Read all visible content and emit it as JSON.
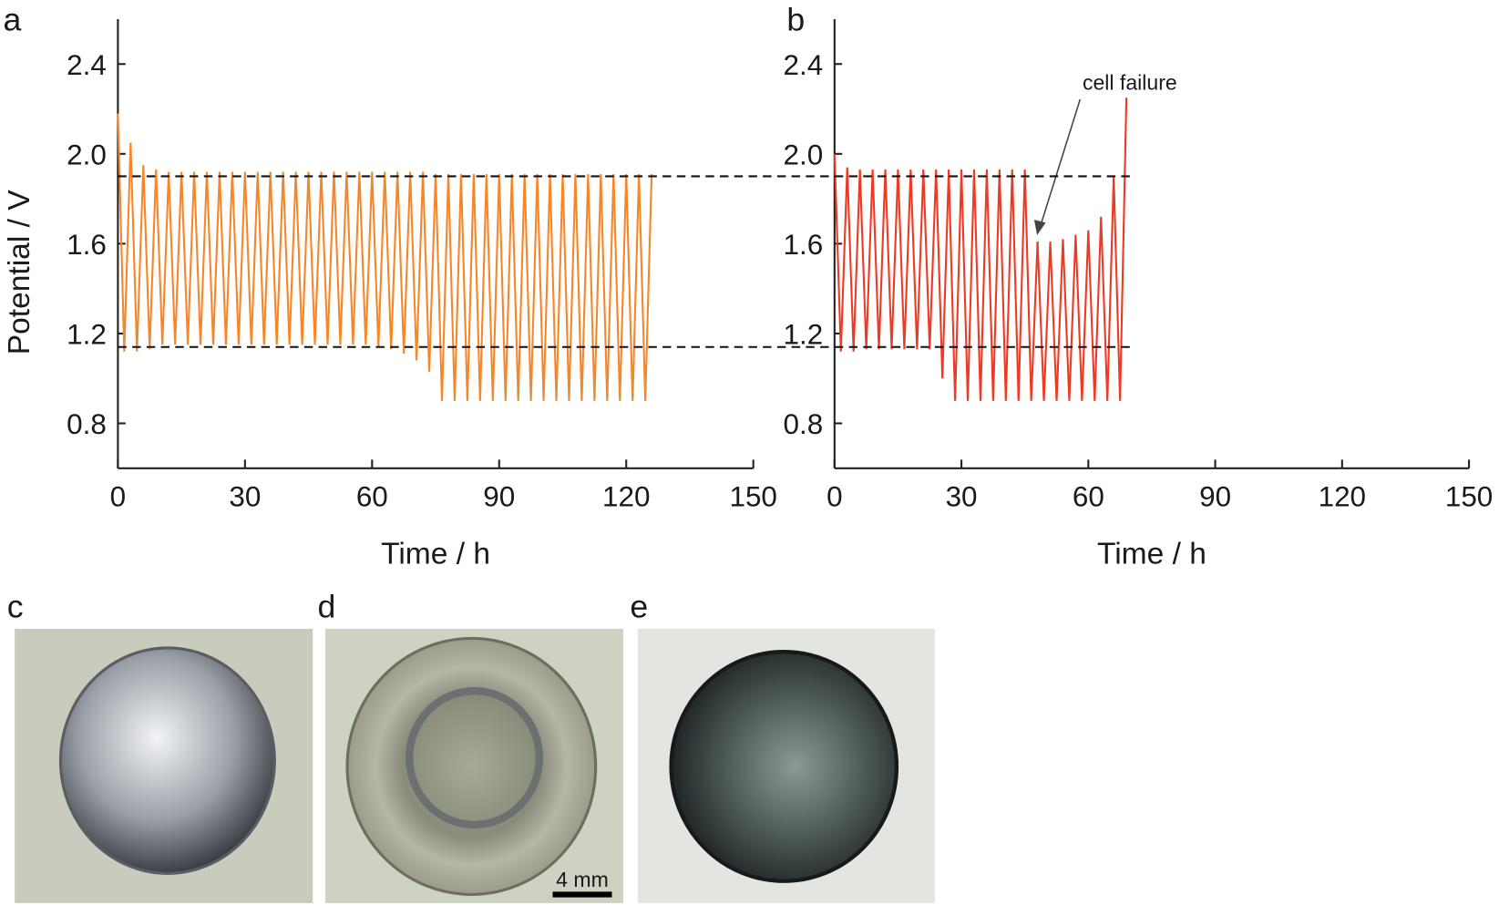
{
  "chart_data": [
    {
      "type": "line",
      "panel_label": "a",
      "ylabel": "Potential / V",
      "xlabel": "Time / h",
      "xlim": [
        0,
        150
      ],
      "xticks": [
        0,
        30,
        60,
        90,
        120,
        150
      ],
      "ylim": [
        0.6,
        2.6
      ],
      "yticks": [
        0.8,
        1.2,
        1.6,
        {
          "value": 2,
          "label": "2.0"
        },
        2.4
      ],
      "hlines": [
        1.9,
        1.14
      ],
      "x": [
        0,
        1.5,
        3,
        4.5,
        6,
        7.5,
        9,
        10.5,
        12,
        13.5,
        15,
        16.5,
        18,
        19.5,
        21,
        22.5,
        24,
        25.5,
        27,
        28.5,
        30,
        31.5,
        33,
        34.5,
        36,
        37.5,
        39,
        40.5,
        42,
        43.5,
        45,
        46.5,
        48,
        49.5,
        51,
        52.5,
        54,
        55.5,
        57,
        58.5,
        60,
        61.5,
        63,
        64.5,
        66,
        67.5,
        69,
        70.5,
        72,
        73.5,
        75,
        76.5,
        78,
        79.5,
        81,
        82.5,
        84,
        85.5,
        87,
        88.5,
        90,
        91.5,
        93,
        94.5,
        96,
        97.5,
        99,
        100.5,
        102,
        103.5,
        105,
        106.5,
        108,
        109.5,
        111,
        112.5,
        114,
        115.5,
        117,
        118.5,
        120,
        121.5,
        123,
        124.5,
        126
      ],
      "series": [
        {
          "color": "#f5872a",
          "values": [
            2.18,
            1.12,
            2.05,
            1.12,
            1.95,
            1.13,
            1.93,
            1.15,
            1.92,
            1.15,
            1.92,
            1.15,
            1.92,
            1.15,
            1.92,
            1.15,
            1.92,
            1.15,
            1.92,
            1.15,
            1.92,
            1.15,
            1.92,
            1.15,
            1.92,
            1.15,
            1.92,
            1.15,
            1.92,
            1.15,
            1.92,
            1.15,
            1.92,
            1.15,
            1.92,
            1.15,
            1.92,
            1.15,
            1.92,
            1.15,
            1.92,
            1.14,
            1.92,
            1.13,
            1.92,
            1.11,
            1.92,
            1.08,
            1.92,
            1.03,
            1.91,
            0.9,
            1.91,
            0.9,
            1.91,
            0.9,
            1.91,
            0.9,
            1.91,
            0.9,
            1.91,
            0.9,
            1.91,
            0.9,
            1.91,
            0.9,
            1.91,
            0.9,
            1.91,
            0.9,
            1.91,
            0.9,
            1.91,
            0.9,
            1.91,
            0.9,
            1.91,
            0.9,
            1.91,
            0.9,
            1.91,
            0.9,
            1.91,
            0.9,
            1.91
          ]
        }
      ]
    },
    {
      "type": "line",
      "panel_label": "b",
      "xlabel": "Time / h",
      "xlim": [
        0,
        150
      ],
      "xticks": [
        0,
        30,
        60,
        90,
        120,
        150
      ],
      "ylim": [
        0.6,
        2.6
      ],
      "yticks": [
        0.8,
        1.2,
        1.6,
        {
          "value": 2,
          "label": "2.0"
        },
        2.4
      ],
      "annotation": "cell failure",
      "x": [
        0,
        1.5,
        3,
        4.5,
        6,
        7.5,
        9,
        10.5,
        12,
        13.5,
        15,
        16.5,
        18,
        19.5,
        21,
        22.5,
        24,
        25.5,
        27,
        28.5,
        30,
        31.5,
        33,
        34.5,
        36,
        37.5,
        39,
        40.5,
        42,
        43.5,
        45,
        46.5,
        48,
        49.5,
        51,
        52.5,
        54,
        55.5,
        57,
        58.5,
        60,
        61.5,
        63,
        64.5,
        66,
        67.5,
        69
      ],
      "series": [
        {
          "color": "#ee3a24",
          "values": [
            2.0,
            1.12,
            1.94,
            1.12,
            1.93,
            1.13,
            1.93,
            1.13,
            1.93,
            1.13,
            1.93,
            1.13,
            1.93,
            1.13,
            1.93,
            1.13,
            1.93,
            1.0,
            1.93,
            0.9,
            1.93,
            0.9,
            1.93,
            0.9,
            1.93,
            0.9,
            1.93,
            0.9,
            1.93,
            0.9,
            1.93,
            0.9,
            1.61,
            0.9,
            1.61,
            0.9,
            1.62,
            0.9,
            1.64,
            0.9,
            1.66,
            0.9,
            1.72,
            0.9,
            1.9,
            0.9,
            2.25
          ]
        }
      ]
    }
  ],
  "photos": [
    {
      "label": "c"
    },
    {
      "label": "d",
      "scale_bar": "4 mm"
    },
    {
      "label": "e"
    }
  ]
}
